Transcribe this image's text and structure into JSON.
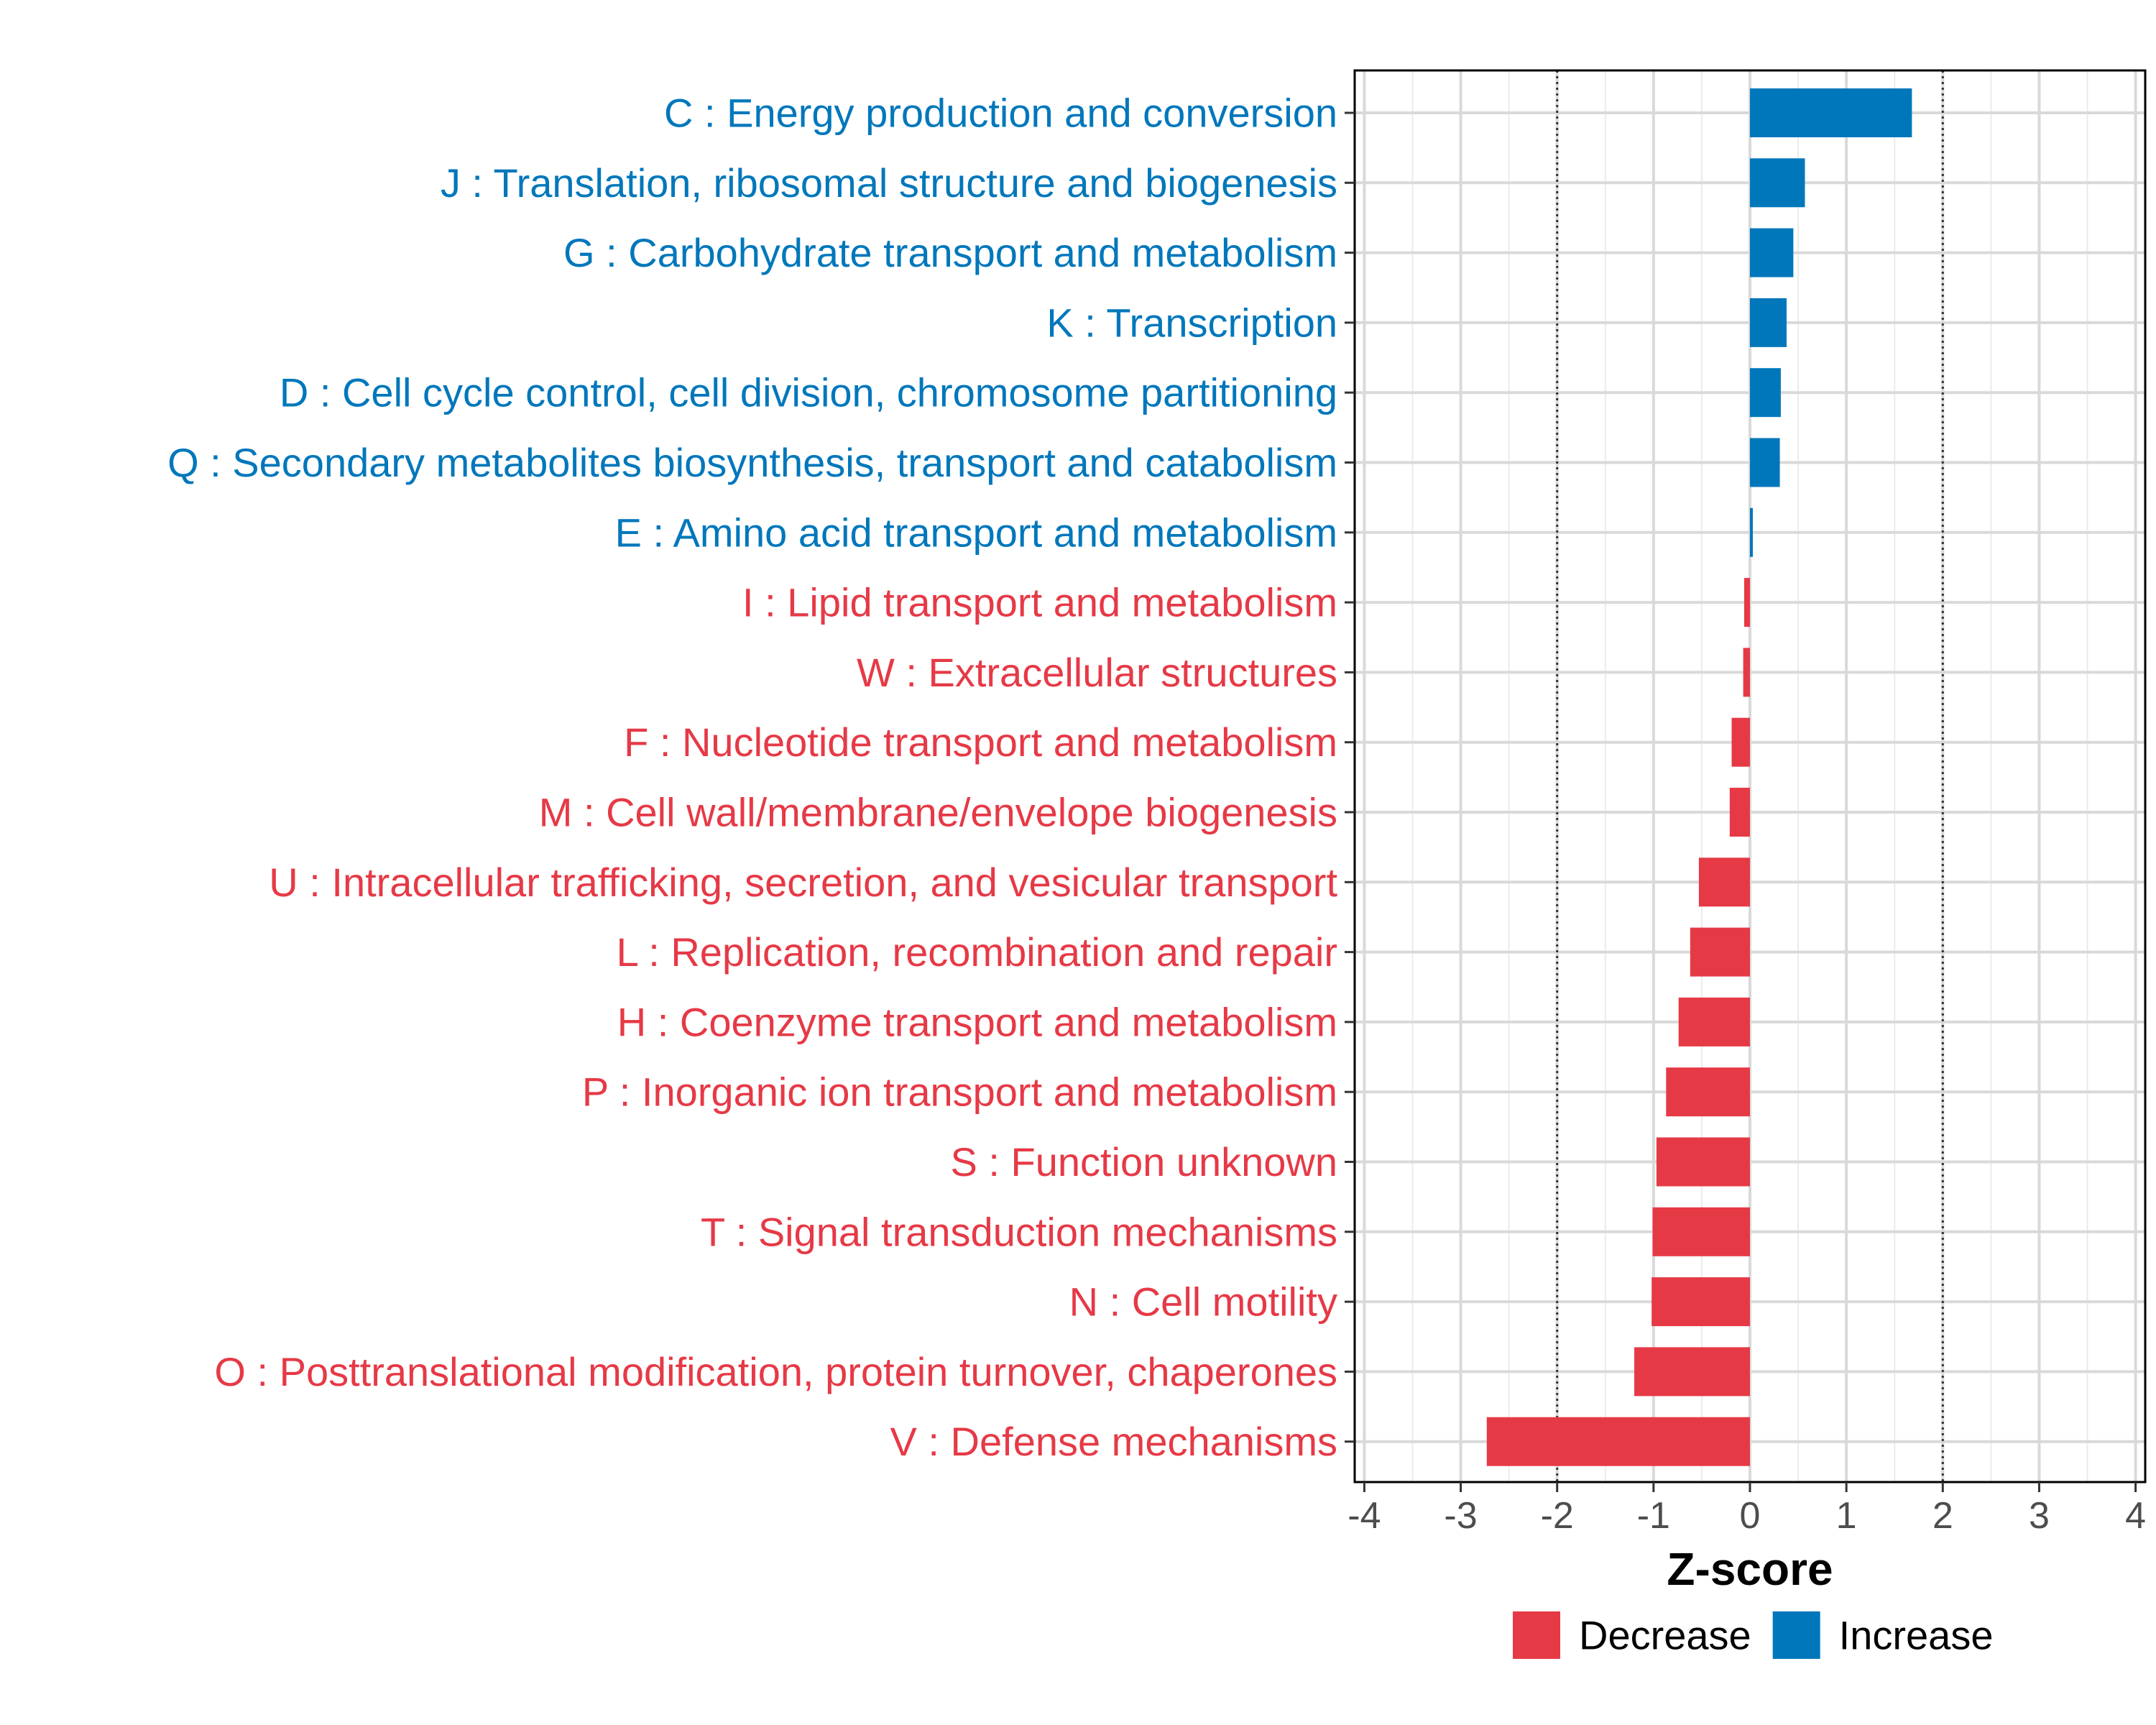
{
  "chart_data": {
    "type": "bar",
    "orientation": "horizontal",
    "title": "",
    "xlabel": "Z-score",
    "ylabel": "",
    "xlim": [
      -4.1,
      4.1
    ],
    "xticks": [
      "-4",
      "-3",
      "-2",
      "-1",
      "0",
      "1",
      "2",
      "3",
      "4"
    ],
    "reference_lines": [
      -2,
      2
    ],
    "grid": true,
    "legend_position": "bottom",
    "colors": {
      "Decrease": "#e63946",
      "Increase": "#0077bb"
    },
    "legend": [
      {
        "name": "Decrease",
        "color": "#e63946"
      },
      {
        "name": "Increase",
        "color": "#0077bb"
      }
    ],
    "categories": [
      "C : Energy production and conversion",
      "J : Translation, ribosomal structure and biogenesis",
      "G : Carbohydrate transport and metabolism",
      "K : Transcription",
      "D : Cell cycle control, cell division, chromosome partitioning",
      "Q : Secondary metabolites biosynthesis, transport and catabolism",
      "E : Amino acid transport and metabolism",
      "I : Lipid transport and metabolism",
      "W : Extracellular structures",
      "F : Nucleotide transport and metabolism",
      "M : Cell wall/membrane/envelope biogenesis",
      "U : Intracellular trafficking, secretion, and vesicular transport",
      "L : Replication, recombination and repair",
      "H : Coenzyme transport and metabolism",
      "P : Inorganic ion transport and metabolism",
      "S : Function unknown",
      "T : Signal transduction mechanisms",
      "N : Cell motility",
      "O : Posttranslational modification, protein turnover, chaperones",
      "V : Defense mechanisms"
    ],
    "values": [
      1.68,
      0.57,
      0.45,
      0.38,
      0.32,
      0.31,
      0.02,
      -0.06,
      -0.07,
      -0.19,
      -0.21,
      -0.53,
      -0.62,
      -0.74,
      -0.87,
      -0.97,
      -1.01,
      -1.02,
      -1.2,
      -2.73
    ],
    "groups": [
      "Increase",
      "Increase",
      "Increase",
      "Increase",
      "Increase",
      "Increase",
      "Increase",
      "Decrease",
      "Decrease",
      "Decrease",
      "Decrease",
      "Decrease",
      "Decrease",
      "Decrease",
      "Decrease",
      "Decrease",
      "Decrease",
      "Decrease",
      "Decrease",
      "Decrease"
    ]
  }
}
